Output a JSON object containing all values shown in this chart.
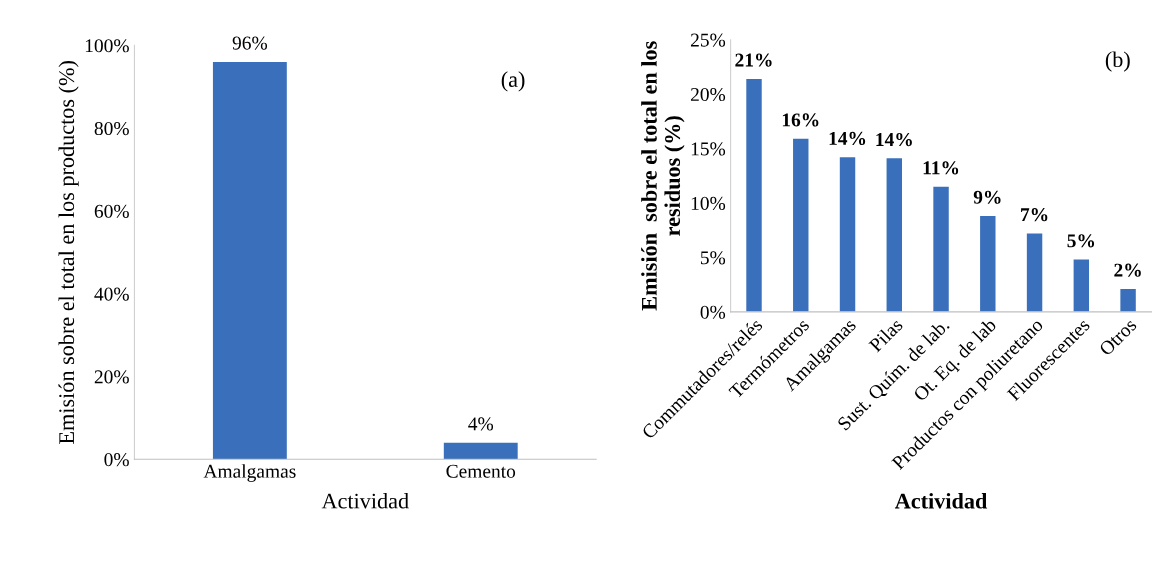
{
  "chart_data": [
    {
      "type": "bar",
      "categories": [
        "Amalgamas",
        "Cemento"
      ],
      "values": [
        96,
        4
      ],
      "value_labels": [
        "96%",
        "4%"
      ],
      "color": "#3a70bb",
      "ylabel": "Emisión sobre el total en los productos (%)",
      "xlabel": "Actividad",
      "ylim": [
        0,
        100
      ],
      "yticks": [
        {
          "value": 0,
          "label": "0%"
        },
        {
          "value": 20,
          "label": "20%"
        },
        {
          "value": 40,
          "label": "40%"
        },
        {
          "value": 60,
          "label": "60%"
        },
        {
          "value": 80,
          "label": "80%"
        },
        {
          "value": 100,
          "label": "100%"
        }
      ],
      "annotations": [
        "(a)"
      ],
      "grid": false,
      "legend": false
    },
    {
      "type": "bar",
      "categories": [
        "Commutadores/relés",
        "Termómetros",
        "Amalgamas",
        "Pilas",
        "Sust. Quím. de lab.",
        "Ot. Eq. de lab",
        "Productos con poliuretano",
        "Fluorescentes",
        "Otros"
      ],
      "values": [
        21.4,
        15.9,
        14.2,
        14.1,
        11.5,
        8.8,
        7.2,
        4.8,
        2.1
      ],
      "value_labels": [
        "21%",
        "16%",
        "14%",
        "14%",
        "11%",
        "9%",
        "7%",
        "5%",
        "2%"
      ],
      "color": "#3a70bb",
      "ylabel": "Emisión  sobre el total en los residuos (%)",
      "xlabel": "Actividad",
      "ylim": [
        0,
        25
      ],
      "yticks": [
        {
          "value": 0,
          "label": "0%"
        },
        {
          "value": 5,
          "label": "5%"
        },
        {
          "value": 10,
          "label": "10%"
        },
        {
          "value": 15,
          "label": "15%"
        },
        {
          "value": 20,
          "label": "20%"
        },
        {
          "value": 25,
          "label": "25%"
        }
      ],
      "annotations": [
        "(b)"
      ],
      "grid": false,
      "legend": false
    }
  ]
}
